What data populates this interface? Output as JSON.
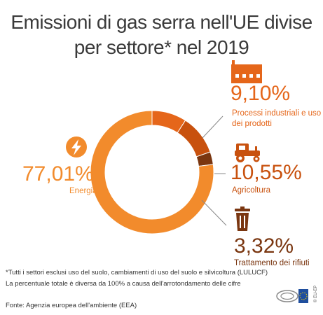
{
  "header": {
    "title_line1": "Emissioni di gas serra nell'UE divise",
    "title_line2": "per settore* nel 2019"
  },
  "colors": {
    "energia": "#F28B2C",
    "industria": "#E5661A",
    "agricoltura": "#C8510E",
    "rifiuti": "#7A3610",
    "text": "#333333"
  },
  "chart_data": {
    "type": "pie",
    "title": "Emissioni di gas serra nell'UE divise per settore* nel 2019",
    "series": [
      {
        "name": "Energia",
        "value": 77.01,
        "label": "77,01%",
        "icon": "lightning-icon",
        "color": "#F28B2C"
      },
      {
        "name": "Processi industriali e uso dei prodotti",
        "value": 9.1,
        "label": "9,10%",
        "icon": "factory-icon",
        "color": "#E5661A"
      },
      {
        "name": "Agricoltura",
        "value": 10.55,
        "label": "10,55%",
        "icon": "tractor-icon",
        "color": "#C8510E"
      },
      {
        "name": "Trattamento dei rifiuti",
        "value": 3.32,
        "label": "3,32%",
        "icon": "trash-bin-icon",
        "color": "#7A3610"
      }
    ]
  },
  "labels": {
    "energia": "Energia",
    "industria_line1": "Processi industriali e uso",
    "industria_line2": "dei prodotti",
    "agricoltura": "Agricoltura",
    "rifiuti": "Trattamento dei rifiuti"
  },
  "footnotes": {
    "note1": "*Tutti i settori esclusi uso del suolo, cambiamenti di uso del suolo e silvicoltura (LULUCF)",
    "note2": "La percentuale totale è diversa da 100% a causa dell'arrotondamento delle cifre",
    "source": "Fonte: Agenzia europea dell'ambiente (EEA)"
  },
  "logo": {
    "text": "© EU-EP"
  }
}
